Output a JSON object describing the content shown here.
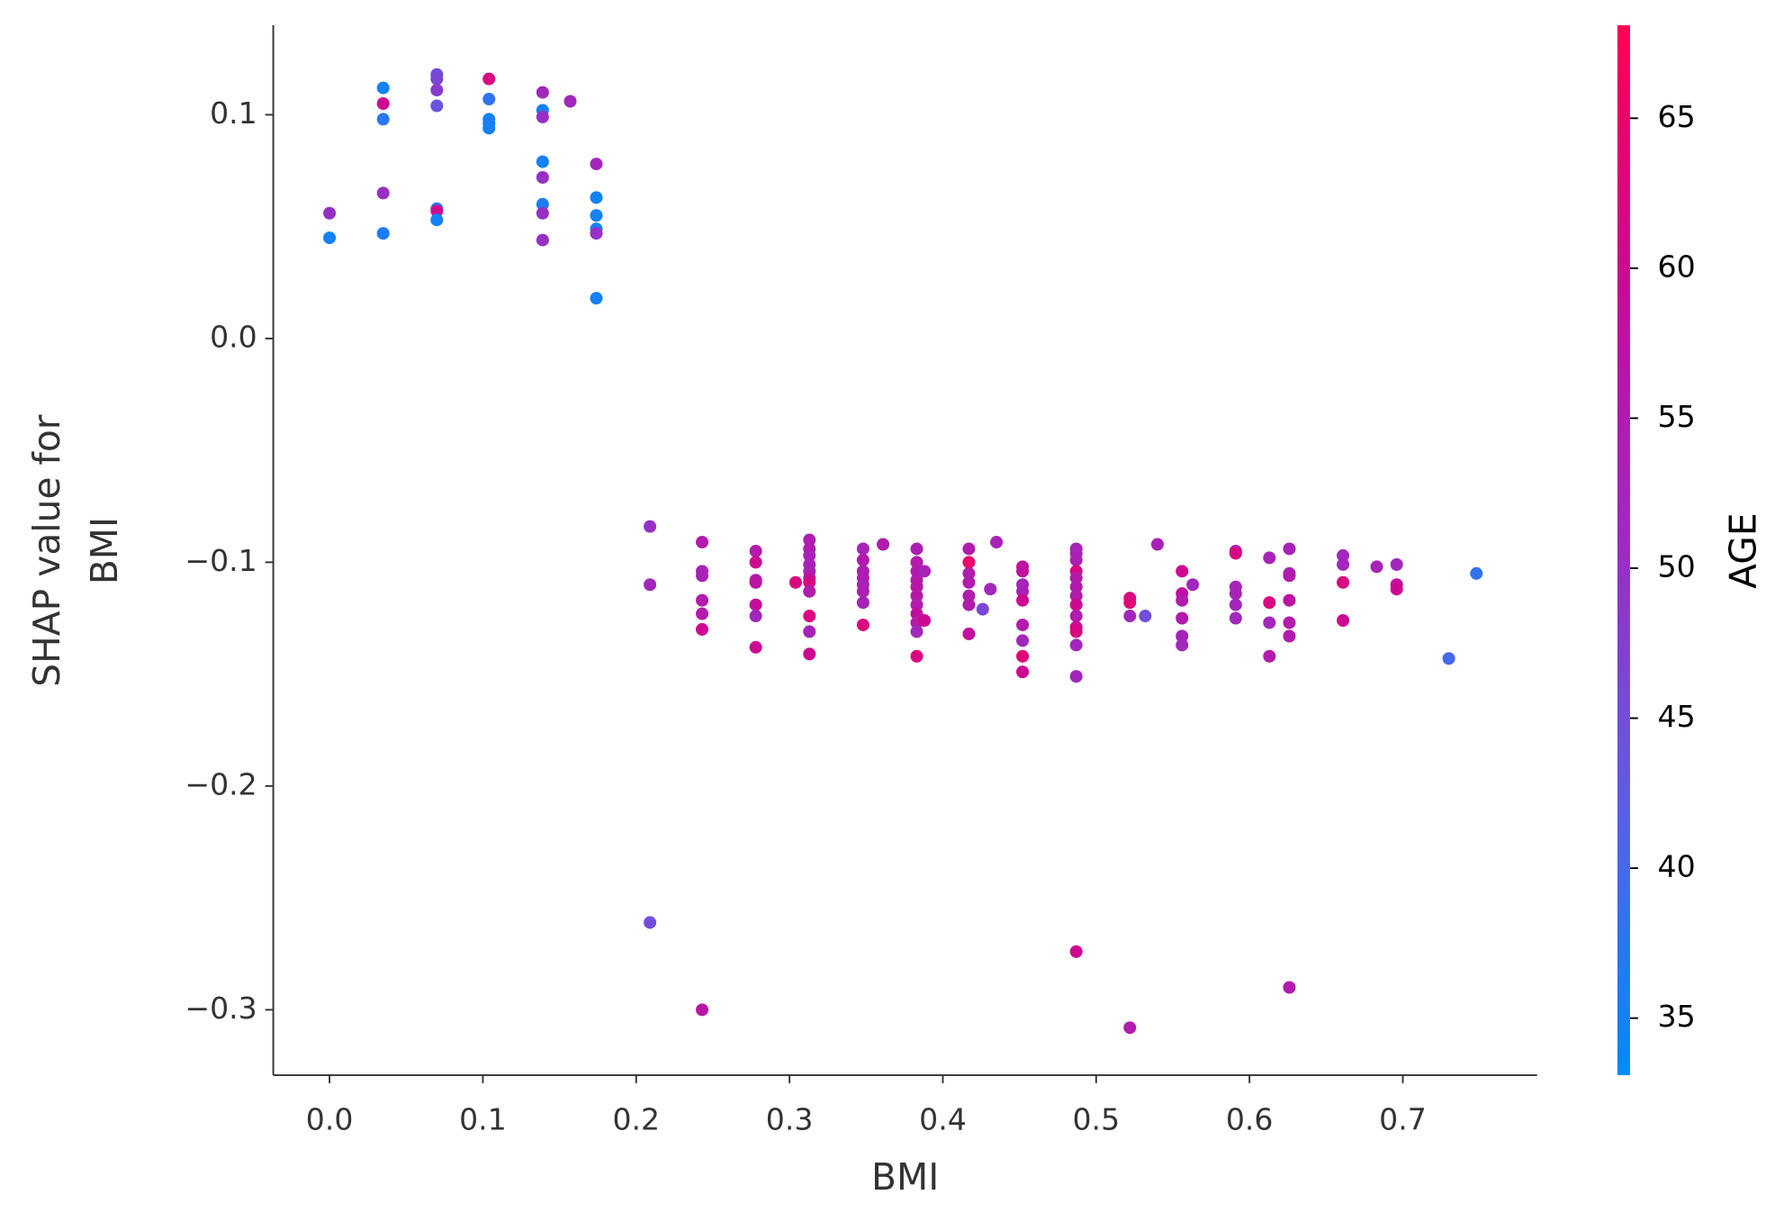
{
  "chart_data": {
    "type": "scatter",
    "x_label": "BMI",
    "y_label": [
      "SHAP value for",
      "BMI"
    ],
    "xlim": [
      -0.0367,
      0.7876
    ],
    "ylim": [
      -0.3292,
      0.14
    ],
    "xticks": [
      {
        "value": 0,
        "label": "0.0"
      },
      0.1,
      0.2,
      0.3,
      0.4,
      0.5,
      0.6,
      0.7
    ],
    "yticks": [
      {
        "value": -0.3,
        "label": "−0.3"
      },
      {
        "value": -0.2,
        "label": "−0.2"
      },
      {
        "value": -0.1,
        "label": "−0.1"
      },
      {
        "value": 0,
        "label": "0.0"
      },
      0.1
    ],
    "x": [
      0,
      0,
      0.035,
      0.035,
      0.035,
      0.035,
      0.035,
      0.07,
      0.07,
      0.07,
      0.07,
      0.07,
      0.07,
      0.07,
      0.104,
      0.104,
      0.104,
      0.104,
      0.104,
      0.139,
      0.139,
      0.139,
      0.139,
      0.139,
      0.139,
      0.139,
      0.139,
      0.157,
      0.174,
      0.174,
      0.174,
      0.174,
      0.174,
      0.174,
      0.209,
      0.209,
      0.209,
      0.243,
      0.243,
      0.243,
      0.243,
      0.243,
      0.243,
      0.243,
      0.278,
      0.278,
      0.278,
      0.278,
      0.278,
      0.278,
      0.278,
      0.304,
      0.313,
      0.313,
      0.313,
      0.313,
      0.313,
      0.313,
      0.313,
      0.313,
      0.313,
      0.313,
      0.313,
      0.348,
      0.348,
      0.348,
      0.348,
      0.348,
      0.348,
      0.348,
      0.348,
      0.361,
      0.383,
      0.383,
      0.383,
      0.383,
      0.383,
      0.383,
      0.383,
      0.383,
      0.383,
      0.383,
      0.383,
      0.388,
      0.388,
      0.417,
      0.417,
      0.417,
      0.417,
      0.417,
      0.417,
      0.417,
      0.426,
      0.431,
      0.435,
      0.452,
      0.452,
      0.452,
      0.452,
      0.452,
      0.452,
      0.452,
      0.452,
      0.452,
      0.487,
      0.487,
      0.487,
      0.487,
      0.487,
      0.487,
      0.487,
      0.487,
      0.487,
      0.487,
      0.487,
      0.487,
      0.487,
      0.487,
      0.522,
      0.522,
      0.522,
      0.522,
      0.532,
      0.54,
      0.556,
      0.556,
      0.556,
      0.556,
      0.556,
      0.556,
      0.563,
      0.591,
      0.591,
      0.591,
      0.591,
      0.591,
      0.591,
      0.613,
      0.613,
      0.613,
      0.613,
      0.626,
      0.626,
      0.626,
      0.626,
      0.626,
      0.626,
      0.626,
      0.661,
      0.661,
      0.661,
      0.661,
      0.683,
      0.696,
      0.696,
      0.696,
      0.73,
      0.748
    ],
    "values": [
      0.056,
      0.045,
      0.112,
      0.105,
      0.098,
      0.065,
      0.047,
      0.118,
      0.116,
      0.111,
      0.104,
      0.058,
      0.057,
      0.053,
      0.116,
      0.107,
      0.098,
      0.096,
      0.094,
      0.11,
      0.102,
      0.099,
      0.079,
      0.072,
      0.06,
      0.056,
      0.044,
      0.106,
      0.078,
      0.063,
      0.055,
      0.049,
      0.047,
      0.018,
      -0.084,
      -0.11,
      -0.261,
      -0.091,
      -0.104,
      -0.106,
      -0.117,
      -0.123,
      -0.13,
      -0.3,
      -0.095,
      -0.1,
      -0.108,
      -0.109,
      -0.119,
      -0.124,
      -0.138,
      -0.109,
      -0.09,
      -0.094,
      -0.097,
      -0.101,
      -0.104,
      -0.107,
      -0.109,
      -0.113,
      -0.124,
      -0.131,
      -0.141,
      -0.094,
      -0.099,
      -0.104,
      -0.107,
      -0.11,
      -0.113,
      -0.118,
      -0.128,
      -0.092,
      -0.094,
      -0.1,
      -0.104,
      -0.108,
      -0.111,
      -0.115,
      -0.119,
      -0.123,
      -0.127,
      -0.131,
      -0.142,
      -0.104,
      -0.126,
      -0.094,
      -0.1,
      -0.105,
      -0.109,
      -0.115,
      -0.119,
      -0.132,
      -0.121,
      -0.112,
      -0.091,
      -0.102,
      -0.104,
      -0.11,
      -0.113,
      -0.117,
      -0.128,
      -0.135,
      -0.142,
      -0.149,
      -0.094,
      -0.096,
      -0.099,
      -0.104,
      -0.107,
      -0.111,
      -0.115,
      -0.119,
      -0.124,
      -0.129,
      -0.131,
      -0.137,
      -0.151,
      -0.274,
      -0.116,
      -0.118,
      -0.124,
      -0.308,
      -0.124,
      -0.092,
      -0.104,
      -0.114,
      -0.117,
      -0.125,
      -0.133,
      -0.137,
      -0.11,
      -0.095,
      -0.096,
      -0.111,
      -0.114,
      -0.119,
      -0.125,
      -0.098,
      -0.118,
      -0.127,
      -0.142,
      -0.094,
      -0.105,
      -0.106,
      -0.117,
      -0.127,
      -0.133,
      -0.29,
      -0.097,
      -0.101,
      -0.109,
      -0.126,
      -0.102,
      -0.101,
      -0.11,
      -0.112,
      -0.143,
      -0.105
    ],
    "color_values": [
      50,
      35,
      35,
      60,
      37,
      50,
      36,
      45,
      46,
      48,
      44,
      36,
      60,
      35,
      62,
      38,
      35,
      36,
      35,
      52,
      35,
      50,
      35,
      50,
      36,
      50,
      50,
      52,
      52,
      35,
      35,
      35,
      50,
      35,
      50,
      52,
      45,
      55,
      53,
      53,
      55,
      55,
      60,
      56,
      55,
      60,
      55,
      57,
      58,
      52,
      60,
      62,
      54,
      55,
      53,
      53,
      53,
      57,
      62,
      55,
      62,
      53,
      60,
      53,
      55,
      54,
      55,
      53,
      54,
      53,
      62,
      55,
      54,
      55,
      55,
      55,
      56,
      56,
      55,
      58,
      55,
      52,
      62,
      53,
      60,
      55,
      65,
      55,
      55,
      55,
      55,
      58,
      46,
      52,
      53,
      58,
      57,
      52,
      53,
      60,
      55,
      52,
      63,
      60,
      53,
      53,
      54,
      62,
      55,
      55,
      55,
      60,
      55,
      60,
      62,
      52,
      52,
      60,
      62,
      63,
      52,
      55,
      45,
      53,
      60,
      58,
      55,
      55,
      53,
      52,
      52,
      55,
      62,
      53,
      53,
      52,
      52,
      53,
      62,
      52,
      55,
      53,
      53,
      55,
      57,
      55,
      55,
      55,
      52,
      52,
      62,
      60,
      53,
      52,
      58,
      60,
      40,
      38
    ],
    "colorbar": {
      "label": "AGE",
      "lim": [
        33.1,
        68.1
      ],
      "ticks": [
        35,
        40,
        45,
        50,
        55,
        60,
        65
      ],
      "colors": [
        "#008bfb",
        "#5a5fe8",
        "#9a2dc2",
        "#c90a96",
        "#ff0052"
      ]
    }
  }
}
